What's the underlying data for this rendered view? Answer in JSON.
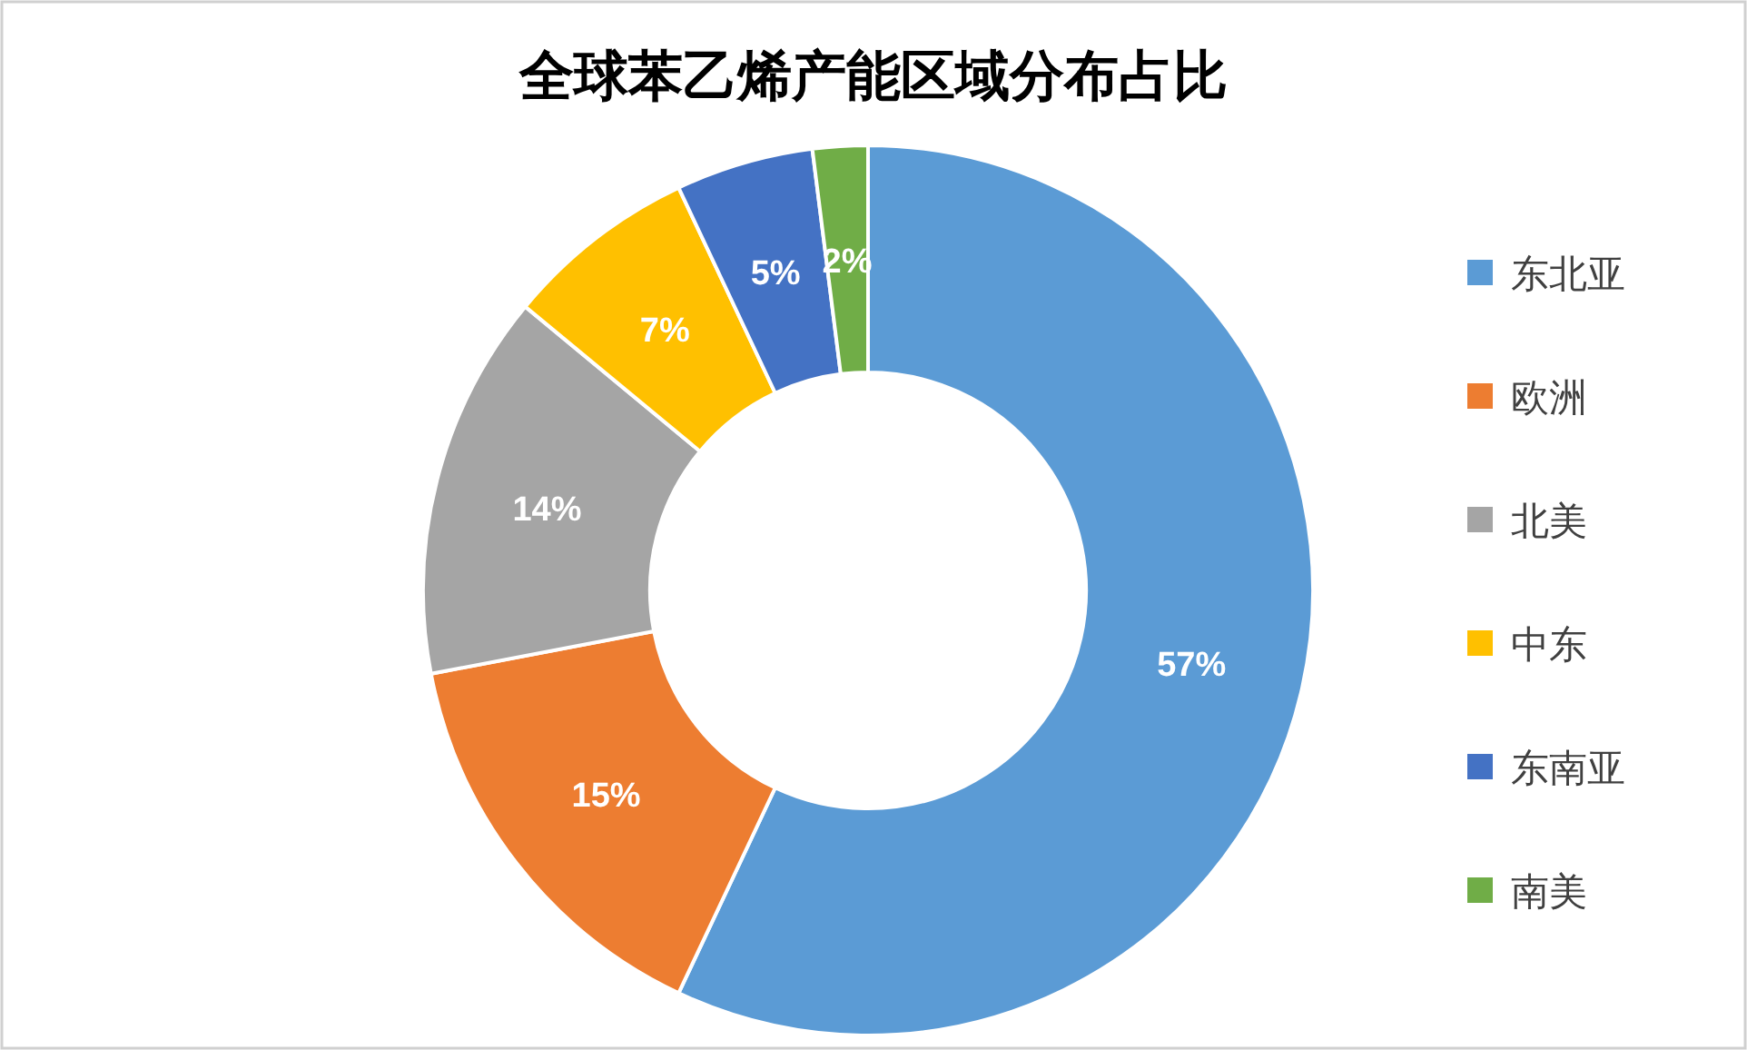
{
  "chart_data": {
    "type": "donut",
    "title": "全球苯乙烯产能区域分布占比",
    "categories": [
      "东北亚",
      "欧洲",
      "北美",
      "中东",
      "东南亚",
      "南美"
    ],
    "values": [
      57,
      15,
      14,
      7,
      5,
      2
    ],
    "colors": [
      "#5b9bd5",
      "#ed7d31",
      "#a5a5a5",
      "#ffc000",
      "#4472c4",
      "#70ad47"
    ],
    "value_labels": [
      "57%",
      "15%",
      "14%",
      "7%",
      "5%",
      "2%"
    ],
    "legend": "right"
  }
}
